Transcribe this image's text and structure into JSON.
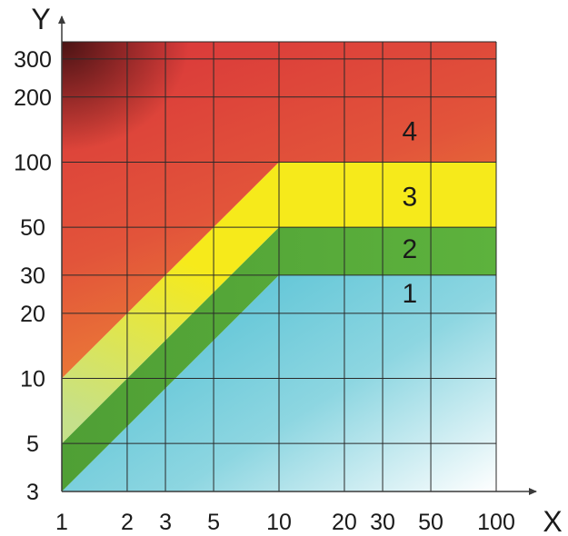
{
  "chart_data": {
    "type": "area",
    "x_scale": "log",
    "y_scale": "log",
    "xlim": [
      1,
      100
    ],
    "ylim": [
      3,
      360
    ],
    "grid": true,
    "xlabel": "X",
    "ylabel": "Y",
    "x_ticks": [
      1,
      2,
      3,
      5,
      10,
      20,
      30,
      50,
      100
    ],
    "x_tick_labels": [
      "1",
      "2",
      "3",
      "5",
      "10",
      "20",
      "30",
      "50",
      "100"
    ],
    "y_ticks": [
      3,
      5,
      10,
      20,
      30,
      50,
      100,
      200,
      300
    ],
    "y_tick_labels": [
      "3",
      "5",
      "10",
      "20",
      "30",
      "50",
      "100",
      "200",
      "300"
    ],
    "boundaries": [
      {
        "points": [
          [
            1,
            3
          ],
          [
            10,
            30
          ],
          [
            100,
            30
          ]
        ]
      },
      {
        "points": [
          [
            1,
            5
          ],
          [
            10,
            50
          ],
          [
            100,
            50
          ]
        ]
      },
      {
        "points": [
          [
            1,
            10
          ],
          [
            10,
            100
          ],
          [
            100,
            100
          ]
        ]
      }
    ],
    "regions": [
      {
        "label": "1",
        "color": "#5cc3d3",
        "label_pos": [
          40,
          25
        ]
      },
      {
        "label": "2",
        "color": "#5aab3c",
        "label_pos": [
          40,
          40
        ]
      },
      {
        "label": "3",
        "color": "#f3e719",
        "label_pos": [
          40,
          70
        ]
      },
      {
        "label": "4",
        "color": "#e0453c",
        "label_pos": [
          40,
          140
        ]
      }
    ]
  }
}
